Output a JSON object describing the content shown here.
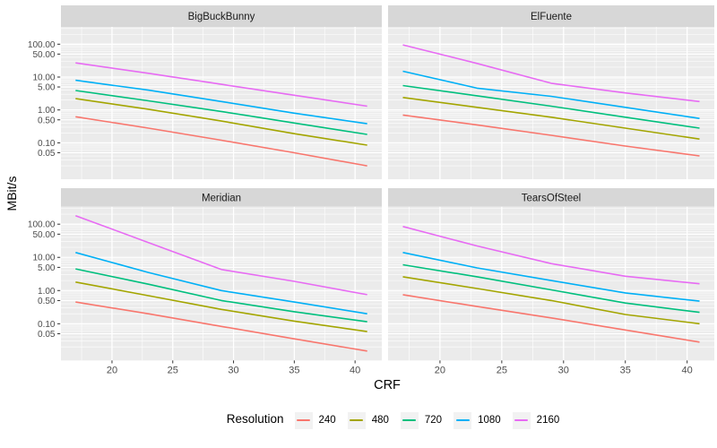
{
  "figure": {
    "y_axis_title": "MBit/s",
    "x_axis_title": "CRF",
    "y_tick_labels": [
      "100.00",
      "50.00",
      "10.00",
      "5.00",
      "1.00",
      "0.50",
      "0.10",
      "0.05"
    ],
    "x_tick_labels": [
      "20",
      "25",
      "30",
      "35",
      "40"
    ]
  },
  "legend": {
    "title": "Resolution",
    "items": [
      {
        "label": "240",
        "color": "#F8766D"
      },
      {
        "label": "480",
        "color": "#A3A500"
      },
      {
        "label": "720",
        "color": "#00BF7D"
      },
      {
        "label": "1080",
        "color": "#00B0F6"
      },
      {
        "label": "2160",
        "color": "#E76BF3"
      }
    ]
  },
  "colors": {
    "panel_background": "#EBEBEB",
    "strip_background": "#D7D7D7",
    "gridline": "#FFFFFF",
    "axis_text": "#4D4D4D",
    "tick_mark": "#333333",
    "legend_key_background": "#F2F2F2"
  },
  "chart_data": {
    "type": "line",
    "xlabel": "CRF",
    "ylabel": "MBit/s",
    "y_scale": "log10",
    "grid": "on",
    "legend_position": "bottom",
    "x": [
      17,
      23,
      29,
      35,
      41
    ],
    "x_ticks": [
      20,
      25,
      30,
      35,
      40
    ],
    "x_minor_ticks": [
      17.5,
      22.5,
      27.5,
      32.5,
      37.5,
      42.5
    ],
    "y_ticks": [
      100,
      50,
      10,
      5,
      1,
      0.5,
      0.1,
      0.05
    ],
    "x_domain": [
      15.8,
      42.2
    ],
    "y_domain_log": [
      -2.106,
      2.526
    ],
    "facets": [
      {
        "title": "BigBuckBunny",
        "series": [
          {
            "name": "240",
            "values": [
              0.62,
              0.28,
              0.12,
              0.05,
              0.02
            ]
          },
          {
            "name": "480",
            "values": [
              2.2,
              1.05,
              0.46,
              0.19,
              0.085
            ]
          },
          {
            "name": "720",
            "values": [
              3.9,
              1.9,
              0.9,
              0.4,
              0.18
            ]
          },
          {
            "name": "1080",
            "values": [
              8.0,
              4.0,
              1.8,
              0.8,
              0.38
            ]
          },
          {
            "name": "2160",
            "values": [
              27,
              13,
              6.0,
              2.8,
              1.3
            ]
          }
        ]
      },
      {
        "title": "ElFuente",
        "series": [
          {
            "name": "240",
            "values": [
              0.7,
              0.35,
              0.17,
              0.08,
              0.04
            ]
          },
          {
            "name": "480",
            "values": [
              2.4,
              1.2,
              0.6,
              0.28,
              0.13
            ]
          },
          {
            "name": "720",
            "values": [
              5.5,
              2.7,
              1.3,
              0.6,
              0.28
            ]
          },
          {
            "name": "1080",
            "values": [
              15,
              4.6,
              2.6,
              1.2,
              0.55
            ]
          },
          {
            "name": "2160",
            "values": [
              95,
              26,
              6.5,
              3.3,
              1.8
            ]
          }
        ]
      },
      {
        "title": "Meridian",
        "series": [
          {
            "name": "240",
            "values": [
              0.45,
              0.2,
              0.083,
              0.035,
              0.015
            ]
          },
          {
            "name": "480",
            "values": [
              1.8,
              0.7,
              0.27,
              0.12,
              0.058
            ]
          },
          {
            "name": "720",
            "values": [
              4.5,
              1.55,
              0.5,
              0.23,
              0.115
            ]
          },
          {
            "name": "1080",
            "values": [
              14,
              3.5,
              1.0,
              0.45,
              0.2
            ]
          },
          {
            "name": "2160",
            "values": [
              180,
              28,
              4.3,
              1.9,
              0.75
            ]
          }
        ]
      },
      {
        "title": "TearsOfSteel",
        "series": [
          {
            "name": "240",
            "values": [
              0.75,
              0.33,
              0.15,
              0.065,
              0.028
            ]
          },
          {
            "name": "480",
            "values": [
              2.6,
              1.15,
              0.5,
              0.19,
              0.1
            ]
          },
          {
            "name": "720",
            "values": [
              6.0,
              2.6,
              1.05,
              0.42,
              0.22
            ]
          },
          {
            "name": "1080",
            "values": [
              14,
              4.8,
              2.0,
              0.85,
              0.48
            ]
          },
          {
            "name": "2160",
            "values": [
              85,
              22,
              6.5,
              2.7,
              1.6
            ]
          }
        ]
      }
    ]
  }
}
